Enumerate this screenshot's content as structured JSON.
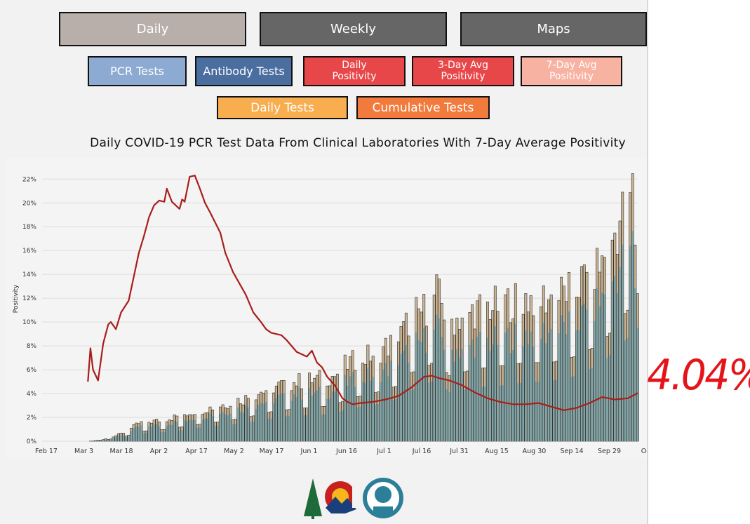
{
  "nav": {
    "tabs": [
      {
        "label": "Daily",
        "color": "#b8afaa",
        "active": true
      },
      {
        "label": "Weekly",
        "color": "#666666",
        "active": false
      },
      {
        "label": "Maps",
        "color": "#666666",
        "active": false
      }
    ]
  },
  "filters": {
    "row1": [
      {
        "label": "PCR Tests",
        "color": "#8dabd2"
      },
      {
        "label": "Antibody Tests",
        "color": "#4b6ea0"
      },
      {
        "label": "Daily\nPositivity",
        "color": "#e8474a"
      },
      {
        "label": "3-Day Avg\nPositivity",
        "color": "#e8474a"
      },
      {
        "label": "7-Day Avg\nPositivity",
        "color": "#f8b2a2"
      }
    ],
    "row2": [
      {
        "label": "Daily Tests",
        "color": "#f8ad4f"
      },
      {
        "label": "Cumulative Tests",
        "color": "#f37a3d"
      }
    ]
  },
  "annotation": "4.04%",
  "colors": {
    "bar_outer": "#c8b394",
    "bar_inner": "#80a4a8",
    "line": "#a81e1a",
    "annotation": "#e4141a"
  },
  "chart_data": {
    "type": "bar",
    "title": "Daily COVID-19 PCR Test Data From Clinical Laboratories With 7-Day Average Positivity",
    "ylabel": "Positivity",
    "ylim": [
      0,
      22.9
    ],
    "y_ticks": [
      "0%",
      "2%",
      "4%",
      "6%",
      "8%",
      "10%",
      "12%",
      "14%",
      "16%",
      "18%",
      "20%",
      "22%"
    ],
    "x_ticks": [
      "Feb 17",
      "Mar 3",
      "Mar 18",
      "Apr 2",
      "Apr 17",
      "May 2",
      "May 17",
      "Jun 1",
      "Jun 16",
      "Jul 1",
      "Jul 16",
      "Jul 31",
      "Aug 15",
      "Aug 30",
      "Sep 14",
      "Sep 29",
      "Oct"
    ],
    "grid": true,
    "series": [
      {
        "name": "",
        "kind": "bar-total",
        "note": "daily test volume, drawn on the positivity scale",
        "keypoints": [
          [
            0,
            0
          ],
          [
            18,
            0
          ],
          [
            23,
            0.1
          ],
          [
            28,
            0.4
          ],
          [
            33,
            0.8
          ],
          [
            38,
            1.5
          ],
          [
            48,
            1.8
          ],
          [
            55,
            2.2
          ],
          [
            60,
            2.5
          ],
          [
            70,
            3
          ],
          [
            80,
            3.6
          ],
          [
            90,
            4.5
          ],
          [
            100,
            5
          ],
          [
            108,
            5.2
          ],
          [
            115,
            5.5
          ],
          [
            120,
            6.5
          ],
          [
            130,
            7.3
          ],
          [
            140,
            8.5
          ],
          [
            145,
            10.5
          ],
          [
            150,
            11
          ],
          [
            155,
            12.5
          ],
          [
            160,
            10
          ],
          [
            170,
            11
          ],
          [
            180,
            11.5
          ],
          [
            190,
            12
          ],
          [
            200,
            12
          ],
          [
            210,
            13
          ],
          [
            220,
            15
          ],
          [
            228,
            19
          ],
          [
            232,
            21
          ],
          [
            234,
            13
          ]
        ]
      },
      {
        "name": "",
        "kind": "bar-inner",
        "keypoints": [
          [
            0,
            0
          ],
          [
            18,
            0
          ],
          [
            23,
            0.05
          ],
          [
            28,
            0.3
          ],
          [
            33,
            0.6
          ],
          [
            38,
            1.2
          ],
          [
            48,
            1.4
          ],
          [
            55,
            1.7
          ],
          [
            60,
            2
          ],
          [
            70,
            2.4
          ],
          [
            80,
            2.8
          ],
          [
            90,
            3.5
          ],
          [
            100,
            4
          ],
          [
            108,
            4
          ],
          [
            115,
            4.2
          ],
          [
            120,
            5
          ],
          [
            130,
            5.5
          ],
          [
            140,
            6.5
          ],
          [
            145,
            7.8
          ],
          [
            150,
            8.5
          ],
          [
            155,
            9.5
          ],
          [
            160,
            7.5
          ],
          [
            170,
            8.2
          ],
          [
            180,
            8.5
          ],
          [
            190,
            9
          ],
          [
            200,
            9.2
          ],
          [
            210,
            10
          ],
          [
            220,
            12
          ],
          [
            228,
            15
          ],
          [
            232,
            16.5
          ],
          [
            234,
            10
          ]
        ]
      },
      {
        "name": "",
        "kind": "line",
        "note": "7-day average positivity",
        "keypoints": [
          [
            18,
            5
          ],
          [
            19,
            7.8
          ],
          [
            20,
            6
          ],
          [
            22,
            5.1
          ],
          [
            24,
            8.2
          ],
          [
            26,
            9.8
          ],
          [
            27,
            10
          ],
          [
            29,
            9.4
          ],
          [
            31,
            10.8
          ],
          [
            34,
            11.8
          ],
          [
            38,
            15.8
          ],
          [
            40,
            17.2
          ],
          [
            42,
            18.8
          ],
          [
            44,
            19.8
          ],
          [
            46,
            20.2
          ],
          [
            48,
            20.1
          ],
          [
            49,
            21.2
          ],
          [
            51,
            20.1
          ],
          [
            54,
            19.5
          ],
          [
            55,
            20.3
          ],
          [
            56,
            20.1
          ],
          [
            58,
            22.2
          ],
          [
            60,
            22.3
          ],
          [
            62,
            21.2
          ],
          [
            64,
            20
          ],
          [
            66,
            19.2
          ],
          [
            70,
            17.5
          ],
          [
            72,
            15.8
          ],
          [
            75,
            14.2
          ],
          [
            80,
            12.3
          ],
          [
            83,
            10.8
          ],
          [
            86,
            10
          ],
          [
            88,
            9.4
          ],
          [
            90,
            9.1
          ],
          [
            94,
            8.9
          ],
          [
            96,
            8.5
          ],
          [
            100,
            7.5
          ],
          [
            104,
            7.1
          ],
          [
            106,
            7.6
          ],
          [
            108,
            6.6
          ],
          [
            110,
            6.2
          ],
          [
            112,
            5.4
          ],
          [
            115,
            4.7
          ],
          [
            118,
            3.6
          ],
          [
            120,
            3.3
          ],
          [
            122,
            3.1
          ],
          [
            125,
            3.2
          ],
          [
            130,
            3.3
          ],
          [
            135,
            3.5
          ],
          [
            140,
            3.8
          ],
          [
            145,
            4.5
          ],
          [
            150,
            5.4
          ],
          [
            153,
            5.5
          ],
          [
            156,
            5.3
          ],
          [
            160,
            5.1
          ],
          [
            165,
            4.7
          ],
          [
            170,
            4.1
          ],
          [
            175,
            3.6
          ],
          [
            180,
            3.3
          ],
          [
            185,
            3.1
          ],
          [
            190,
            3.1
          ],
          [
            195,
            3.2
          ],
          [
            200,
            2.9
          ],
          [
            205,
            2.6
          ],
          [
            210,
            2.8
          ],
          [
            215,
            3.2
          ],
          [
            220,
            3.7
          ],
          [
            225,
            3.5
          ],
          [
            230,
            3.6
          ],
          [
            234,
            4.04
          ]
        ]
      }
    ]
  }
}
